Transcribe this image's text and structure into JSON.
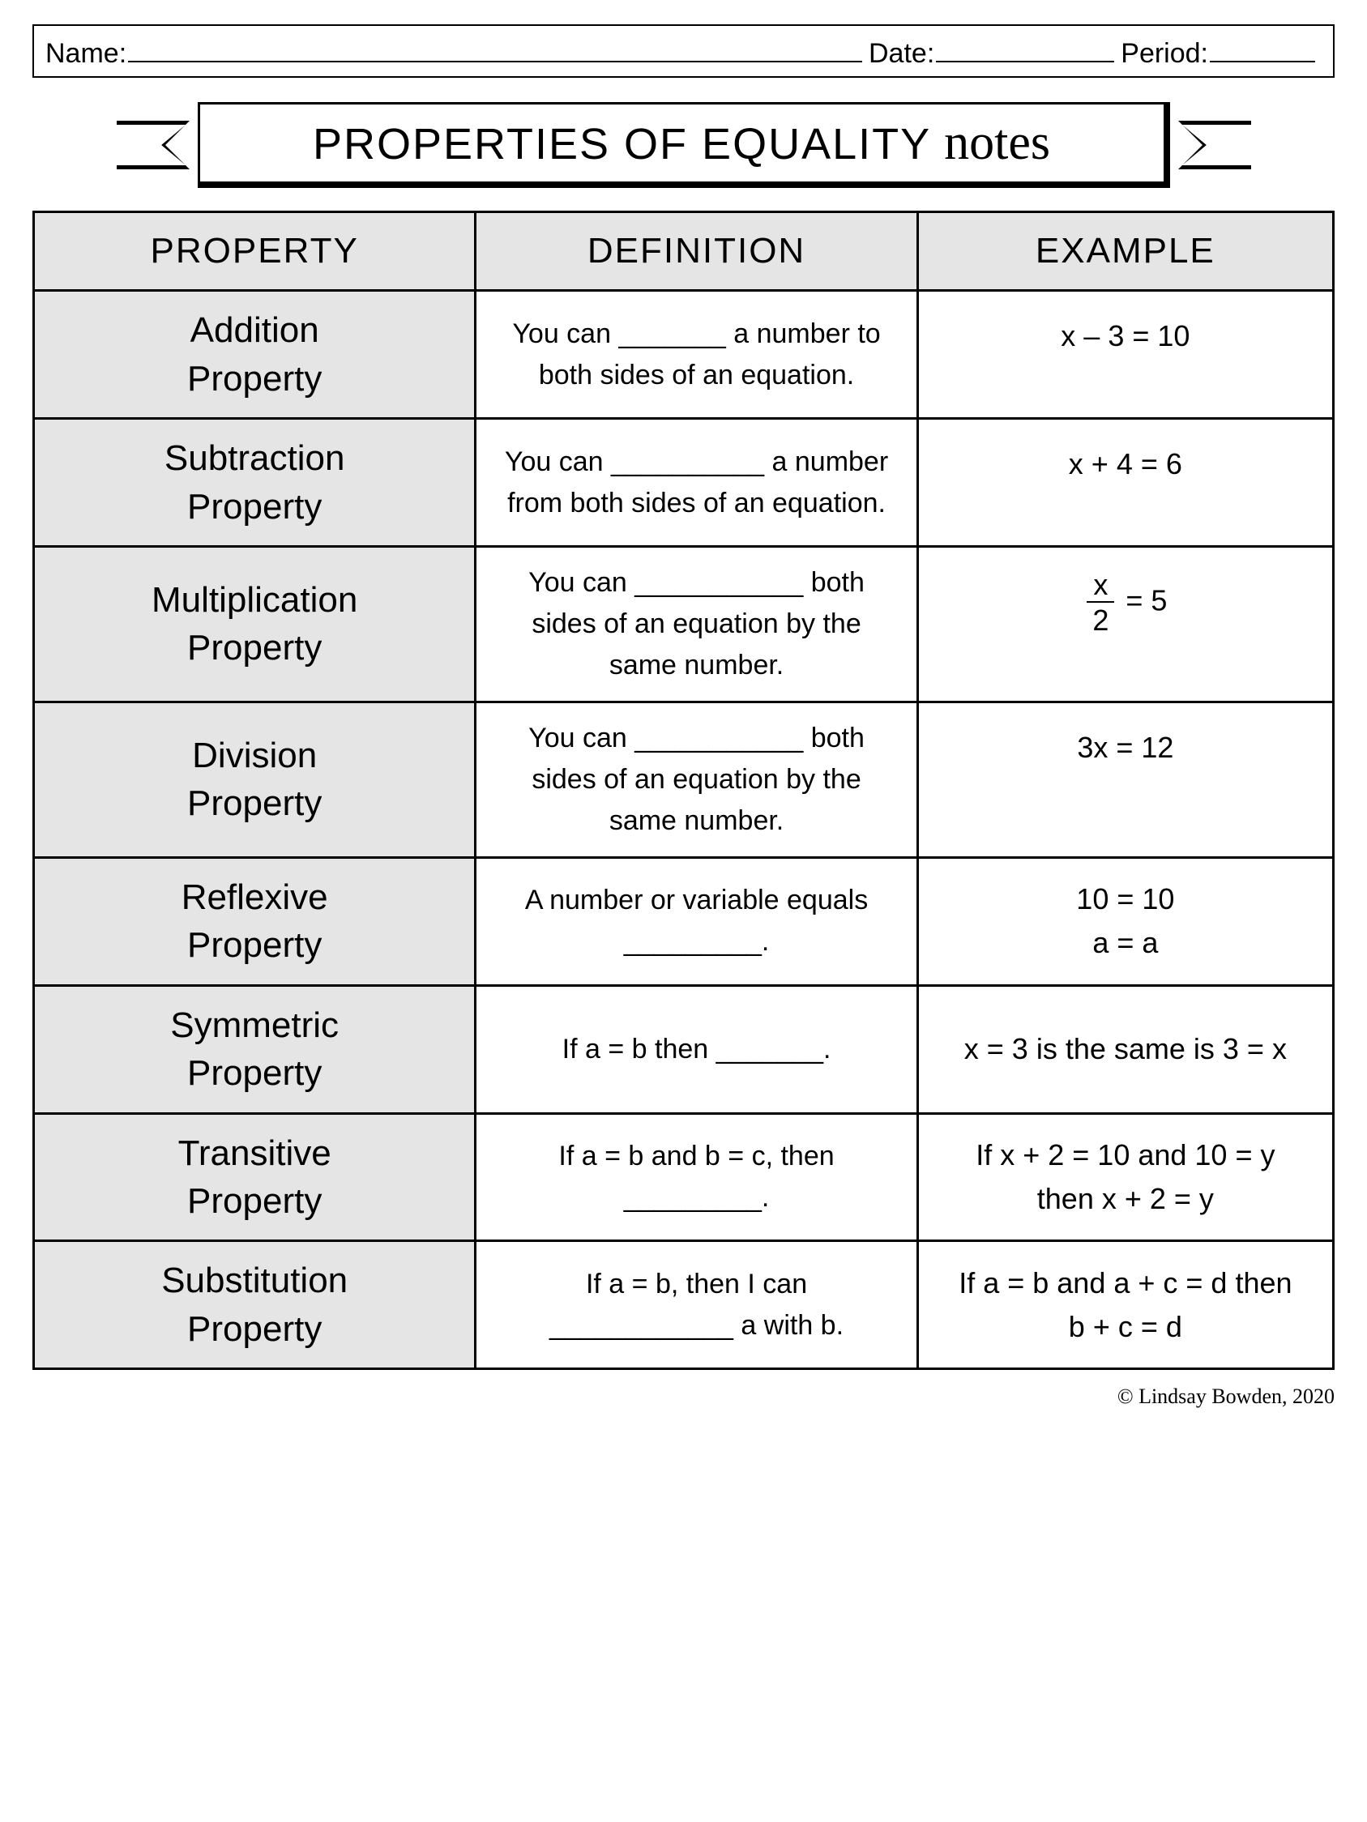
{
  "header": {
    "name_label": "Name:",
    "date_label": "Date:",
    "period_label": "Period:"
  },
  "banner": {
    "title_main": "PROPERTIES OF EQUALITY",
    "title_script": "notes"
  },
  "table": {
    "columns": [
      "PROPERTY",
      "DEFINITION",
      "EXAMPLE"
    ],
    "rows": [
      {
        "property": "Addition\nProperty",
        "definition": "You can _______ a number to both sides of an equation.",
        "example": "x – 3 = 10",
        "example_align": "top"
      },
      {
        "property": "Subtraction\nProperty",
        "definition": "You can __________ a number from both sides of an equation.",
        "example": "x + 4 = 6",
        "example_align": "top"
      },
      {
        "property": "Multiplication\nProperty",
        "definition": "You can ___________ both sides of an equation by the same number.",
        "example_html": "<span class=\"frac\"><span class=\"num\">x</span><span class=\"den\">2</span></span> = 5",
        "example_align": "top"
      },
      {
        "property": "Division\nProperty",
        "definition": "You can ___________ both sides of an equation by the same number.",
        "example": "3x = 12",
        "example_align": "top"
      },
      {
        "property": "Reflexive\nProperty",
        "definition": "A number or variable equals _________.",
        "example": "10 = 10\na = a",
        "example_align": "middle"
      },
      {
        "property": "Symmetric\nProperty",
        "definition": "If a = b then _______.",
        "example": "x = 3 is the same is 3 = x",
        "example_align": "middle"
      },
      {
        "property": "Transitive\nProperty",
        "definition": "If a = b and b = c, then _________.",
        "example": "If x + 2 = 10 and 10 = y\nthen x + 2 = y",
        "example_align": "middle"
      },
      {
        "property": "Substitution\nProperty",
        "definition": "If a = b, then I can ____________ a with b.",
        "example": "If a = b and a + c = d then\nb + c = d",
        "example_align": "middle"
      }
    ]
  },
  "copyright": "© Lindsay Bowden, 2020",
  "colors": {
    "border": "#000000",
    "header_fill": "#e5e5e5",
    "background": "#ffffff"
  }
}
